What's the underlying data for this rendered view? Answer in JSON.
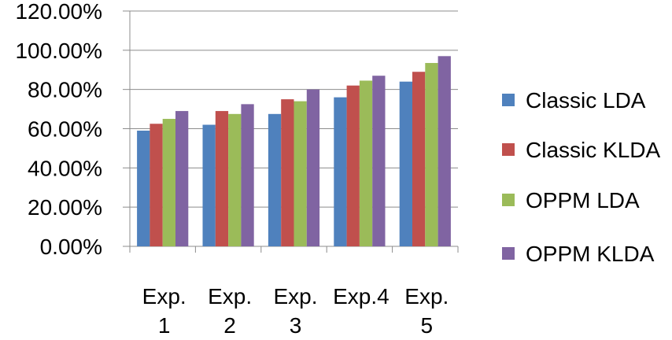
{
  "chart_data": {
    "type": "bar",
    "categories": [
      [
        "Exp.",
        "1"
      ],
      [
        "Exp.",
        "2"
      ],
      [
        "Exp.",
        "3"
      ],
      [
        "Exp.4"
      ],
      [
        "Exp.",
        "5"
      ]
    ],
    "series": [
      {
        "name": "Classic LDA",
        "color": "#4F81BD",
        "values": [
          59,
          62,
          67.5,
          76,
          84
        ]
      },
      {
        "name": "Classic KLDA",
        "color": "#C0504D",
        "values": [
          62.5,
          69,
          75,
          82,
          89
        ]
      },
      {
        "name": "OPPM LDA",
        "color": "#9BBB59",
        "values": [
          65,
          67.5,
          74,
          84.5,
          93.5
        ]
      },
      {
        "name": "OPPM KLDA",
        "color": "#8064A2",
        "values": [
          69,
          72.5,
          80,
          87,
          97
        ]
      }
    ],
    "y_ticks": [
      "0.00%",
      "20.00%",
      "40.00%",
      "60.00%",
      "80.00%",
      "100.00%",
      "120.00%"
    ],
    "ylim": [
      0,
      120
    ],
    "y_unit": "percent",
    "grid": true,
    "legend_position": "right"
  }
}
